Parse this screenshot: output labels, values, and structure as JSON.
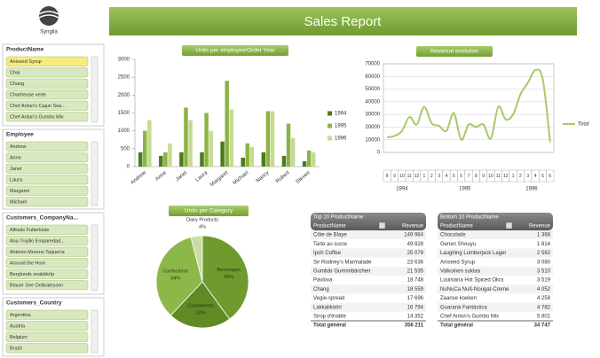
{
  "header": {
    "logo_text": "Syngila",
    "title": "Sales Report"
  },
  "slicers": [
    {
      "title": "ProductName",
      "items": [
        {
          "label": "Aniseed Syrup",
          "selected": true
        },
        {
          "label": "Chai"
        },
        {
          "label": "Chang"
        },
        {
          "label": "Chartreuse verte"
        },
        {
          "label": "Chef Anton's Cajun Sea..."
        },
        {
          "label": "Chef Anton's Gumbo Mix"
        }
      ]
    },
    {
      "title": "Employee",
      "items": [
        {
          "label": "Andrew"
        },
        {
          "label": "Anne"
        },
        {
          "label": "Janet"
        },
        {
          "label": "Laura"
        },
        {
          "label": "Margaret"
        },
        {
          "label": "Michael"
        }
      ]
    },
    {
      "title": "Customers_CompanyNa...",
      "items": [
        {
          "label": "Alfreds Futterkiste"
        },
        {
          "label": "Ana Trujillo Emparedad..."
        },
        {
          "label": "Antonio Moreno Taquería"
        },
        {
          "label": "Around the Horn"
        },
        {
          "label": "Berglunds snabbköp"
        },
        {
          "label": "Blauer See Delikatessen"
        }
      ]
    },
    {
      "title": "Customers_Country",
      "items": [
        {
          "label": "Argentina"
        },
        {
          "label": "Austria"
        },
        {
          "label": "Belgium"
        },
        {
          "label": "Brazil"
        }
      ]
    }
  ],
  "chart_data": [
    {
      "type": "bar",
      "title": "Units per employee/Order Year",
      "categories": [
        "Andrew",
        "Anne",
        "Janet",
        "Laura",
        "Margaret",
        "Michael",
        "Nancy",
        "Robert",
        "Steven"
      ],
      "series": [
        {
          "name": "1994",
          "color": "#4e7a1e",
          "values": [
            400,
            300,
            400,
            400,
            700,
            250,
            400,
            300,
            150
          ]
        },
        {
          "name": "1995",
          "color": "#8ab445",
          "values": [
            1000,
            400,
            1650,
            1500,
            2400,
            650,
            1550,
            1200,
            450
          ]
        },
        {
          "name": "1996",
          "color": "#c5dc8f",
          "values": [
            1300,
            650,
            1300,
            1000,
            1600,
            550,
            1550,
            800,
            400
          ]
        }
      ],
      "ylim": [
        0,
        3000
      ],
      "yticks": [
        0,
        500,
        1000,
        1500,
        2000,
        2500,
        3000
      ]
    },
    {
      "type": "line",
      "title": "Revenue evolution",
      "category_groups": [
        {
          "label": "1994",
          "categories": [
            "8",
            "9",
            "10",
            "11",
            "12"
          ]
        },
        {
          "label": "1995",
          "categories": [
            "1",
            "2",
            "3",
            "4",
            "5",
            "6",
            "7",
            "8",
            "9",
            "10",
            "11",
            "12"
          ]
        },
        {
          "label": "1996",
          "categories": [
            "1",
            "2",
            "3",
            "4",
            "5",
            "6"
          ]
        }
      ],
      "series": [
        {
          "name": "Total",
          "color": "#a8c96a",
          "values": [
            12000,
            13000,
            17000,
            28000,
            22000,
            36000,
            23000,
            21000,
            17000,
            31000,
            10000,
            22000,
            20000,
            22000,
            11000,
            36000,
            26000,
            30000,
            46000,
            55000,
            65000,
            58000,
            8000
          ]
        }
      ],
      "ylim": [
        0,
        70000
      ],
      "yticks": [
        0,
        10000,
        20000,
        30000,
        40000,
        50000,
        60000,
        70000
      ],
      "grid": true
    },
    {
      "type": "pie",
      "title": "Units per Category",
      "categories": [
        "Beverages",
        "Condiments",
        "Confections",
        "Dairy Products"
      ],
      "values": [
        40,
        22,
        34,
        4
      ],
      "value_labels": [
        "40%",
        "22%",
        "34%",
        "4%"
      ],
      "colors": [
        "#6e9a2e",
        "#5f8a24",
        "#8cb84a",
        "#c8dea0"
      ]
    }
  ],
  "tables": [
    {
      "title": "Top 10 ProductName",
      "columns": [
        "ProductName",
        "Revenue"
      ],
      "rows": [
        [
          "Côte de Blaye",
          "149 984"
        ],
        [
          "Tarte au sucre",
          "49 828"
        ],
        [
          "Ipoh Coffee",
          "25 079"
        ],
        [
          "Sir Rodney's Marmalade",
          "23 636"
        ],
        [
          "Gumbär Gummibärchen",
          "21 535"
        ],
        [
          "Pavlova",
          "18 748"
        ],
        [
          "Chang",
          "18 559"
        ],
        [
          "Vegie-spread",
          "17 696"
        ],
        [
          "Lakkalikööri",
          "16 794"
        ],
        [
          "Sirop d'érable",
          "14 352"
        ]
      ],
      "total": [
        "Total général",
        "356 211"
      ]
    },
    {
      "title": "Bottom 10 ProductName",
      "columns": [
        "ProductName",
        "Revenue"
      ],
      "rows": [
        [
          "Chocolade",
          "1 368"
        ],
        [
          "Genen Shouyu",
          "1 814"
        ],
        [
          "Laughing Lumberjack Lager",
          "2 562"
        ],
        [
          "Aniseed Syrup",
          "3 080"
        ],
        [
          "Valkoinen suklaa",
          "3 510"
        ],
        [
          "Louisiana Hot Spiced Okra",
          "3 519"
        ],
        [
          "NuNuCa Nuß-Nougat-Creme",
          "4 052"
        ],
        [
          "Zaanse koeken",
          "4 259"
        ],
        [
          "Guaraná Fantástica",
          "4 782"
        ],
        [
          "Chef Anton's Gumbo Mix",
          "5 801"
        ]
      ],
      "total": [
        "Total général",
        "34 747"
      ]
    }
  ]
}
